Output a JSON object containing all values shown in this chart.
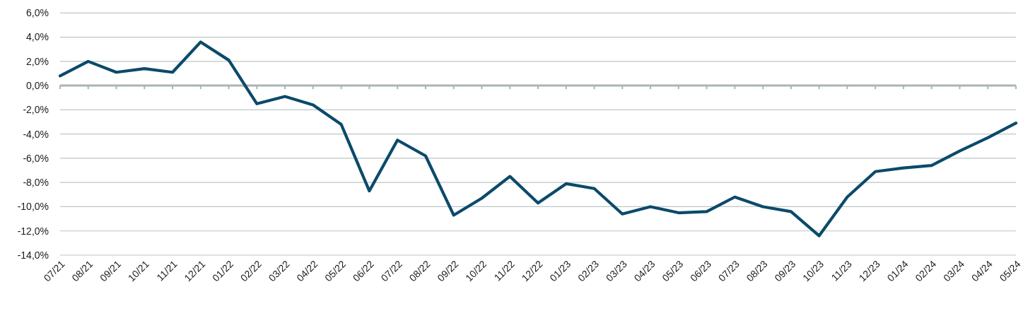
{
  "chart_data": {
    "type": "line",
    "categories": [
      "07/21",
      "08/21",
      "09/21",
      "10/21",
      "11/21",
      "12/21",
      "01/22",
      "02/22",
      "03/22",
      "04/22",
      "05/22",
      "06/22",
      "07/22",
      "08/22",
      "09/22",
      "10/22",
      "11/22",
      "12/22",
      "01/23",
      "02/23",
      "03/23",
      "04/23",
      "05/23",
      "06/23",
      "07/23",
      "08/23",
      "09/23",
      "10/23",
      "11/23",
      "12/23",
      "01/24",
      "02/24",
      "03/24",
      "04/24",
      "05/24"
    ],
    "series": [
      {
        "color": "#0b4a6a",
        "values": [
          0.8,
          2.0,
          1.1,
          1.4,
          1.1,
          3.6,
          2.1,
          -1.5,
          -0.9,
          -1.6,
          -3.2,
          -8.7,
          -4.5,
          -5.8,
          -10.7,
          -9.3,
          -7.5,
          -9.7,
          -8.1,
          -8.5,
          -10.6,
          -10.0,
          -10.5,
          -10.4,
          -9.2,
          -10.0,
          -10.4,
          -12.4,
          -9.2,
          -7.1,
          -6.8,
          -6.6,
          -5.4,
          -4.3,
          -3.1
        ]
      }
    ],
    "ylim": [
      -14,
      6
    ],
    "yticks": [
      {
        "value": 6,
        "label": "6,0%"
      },
      {
        "value": 4,
        "label": "4,0%"
      },
      {
        "value": 2,
        "label": "2,0%"
      },
      {
        "value": 0,
        "label": "0,0%"
      },
      {
        "value": -2,
        "label": "-2,0%"
      },
      {
        "value": -4,
        "label": "-4,0%"
      },
      {
        "value": -6,
        "label": "-6,0%"
      },
      {
        "value": -8,
        "label": "-8,0%"
      },
      {
        "value": -10,
        "label": "-10,0%"
      },
      {
        "value": -12,
        "label": "-12,0%"
      },
      {
        "value": -14,
        "label": "-14,0%"
      }
    ],
    "grid": "y",
    "line_style": "solid"
  }
}
